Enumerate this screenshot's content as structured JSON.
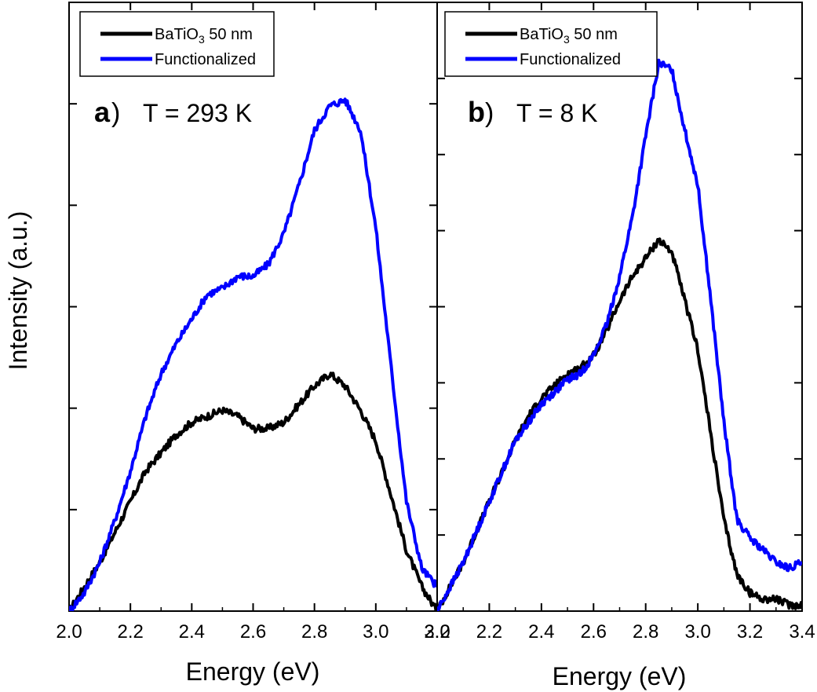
{
  "figure": {
    "ylabel": "Intensity (a.u.)",
    "xlabel": "Energy (eV)"
  },
  "chart_data": [
    {
      "type": "line",
      "panel_letter": "a",
      "title": "T = 293 K",
      "xlabel": "Energy (eV)",
      "ylabel": "Intensity (a.u.)",
      "xlim": [
        2.0,
        3.2
      ],
      "ylim": [
        0,
        1.0
      ],
      "xticks": [
        2.0,
        2.2,
        2.4,
        2.6,
        2.8,
        3.0,
        3.2
      ],
      "xtick_labels": [
        "2.0",
        "2.2",
        "2.4",
        "2.6",
        "2.8",
        "3.0",
        "3.2"
      ],
      "y_tick_labels_shown": false,
      "legend_position": "top-left",
      "series": [
        {
          "name": "BaTiO3 50 nm",
          "color": "#000000",
          "x": [
            2.0,
            2.05,
            2.1,
            2.15,
            2.2,
            2.25,
            2.3,
            2.35,
            2.4,
            2.45,
            2.5,
            2.55,
            2.6,
            2.65,
            2.7,
            2.75,
            2.8,
            2.85,
            2.9,
            2.95,
            3.0,
            3.05,
            3.1,
            3.15,
            3.2
          ],
          "values": [
            0.0,
            0.04,
            0.08,
            0.13,
            0.18,
            0.23,
            0.26,
            0.29,
            0.31,
            0.32,
            0.33,
            0.32,
            0.3,
            0.3,
            0.31,
            0.34,
            0.37,
            0.39,
            0.37,
            0.33,
            0.28,
            0.19,
            0.1,
            0.04,
            0.0
          ]
        },
        {
          "name": "Functionalized",
          "color": "#0000ff",
          "x": [
            2.0,
            2.05,
            2.1,
            2.15,
            2.2,
            2.25,
            2.3,
            2.35,
            2.4,
            2.45,
            2.5,
            2.55,
            2.6,
            2.65,
            2.7,
            2.75,
            2.8,
            2.85,
            2.9,
            2.95,
            3.0,
            3.05,
            3.1,
            3.15,
            3.2
          ],
          "values": [
            0.0,
            0.03,
            0.08,
            0.15,
            0.23,
            0.32,
            0.39,
            0.44,
            0.48,
            0.52,
            0.53,
            0.55,
            0.55,
            0.57,
            0.62,
            0.7,
            0.79,
            0.83,
            0.84,
            0.79,
            0.63,
            0.4,
            0.18,
            0.07,
            0.04
          ]
        }
      ]
    },
    {
      "type": "line",
      "panel_letter": "b",
      "title": "T = 8 K",
      "xlabel": "Energy (eV)",
      "ylabel": "Intensity (a.u.)",
      "xlim": [
        2.0,
        3.4
      ],
      "ylim": [
        0,
        1.0
      ],
      "xticks": [
        2.0,
        2.2,
        2.4,
        2.6,
        2.8,
        3.0,
        3.2,
        3.4
      ],
      "xtick_labels": [
        "2.0",
        "2.2",
        "2.4",
        "2.6",
        "2.8",
        "3.0",
        "3.2",
        "3.4"
      ],
      "y_tick_labels_shown": false,
      "legend_position": "top-left",
      "series": [
        {
          "name": "BaTiO3 50 nm",
          "color": "#000000",
          "x": [
            2.0,
            2.05,
            2.1,
            2.15,
            2.2,
            2.25,
            2.3,
            2.35,
            2.4,
            2.45,
            2.5,
            2.55,
            2.6,
            2.65,
            2.7,
            2.75,
            2.8,
            2.85,
            2.9,
            2.95,
            3.0,
            3.05,
            3.1,
            3.15,
            3.2,
            3.25,
            3.3,
            3.35,
            3.4
          ],
          "values": [
            0.0,
            0.04,
            0.08,
            0.13,
            0.18,
            0.23,
            0.28,
            0.32,
            0.35,
            0.37,
            0.39,
            0.4,
            0.42,
            0.46,
            0.51,
            0.55,
            0.58,
            0.61,
            0.59,
            0.51,
            0.43,
            0.29,
            0.15,
            0.06,
            0.03,
            0.02,
            0.02,
            0.01,
            0.01
          ]
        },
        {
          "name": "Functionalized",
          "color": "#0000ff",
          "x": [
            2.0,
            2.05,
            2.1,
            2.15,
            2.2,
            2.25,
            2.3,
            2.35,
            2.4,
            2.45,
            2.5,
            2.55,
            2.6,
            2.65,
            2.7,
            2.75,
            2.8,
            2.85,
            2.9,
            2.95,
            3.0,
            3.05,
            3.1,
            3.15,
            3.2,
            3.25,
            3.3,
            3.35,
            3.4
          ],
          "values": [
            0.0,
            0.04,
            0.08,
            0.13,
            0.18,
            0.23,
            0.28,
            0.31,
            0.34,
            0.36,
            0.38,
            0.39,
            0.42,
            0.47,
            0.55,
            0.65,
            0.78,
            0.9,
            0.89,
            0.79,
            0.7,
            0.51,
            0.31,
            0.15,
            0.12,
            0.1,
            0.08,
            0.07,
            0.08
          ]
        }
      ]
    }
  ]
}
